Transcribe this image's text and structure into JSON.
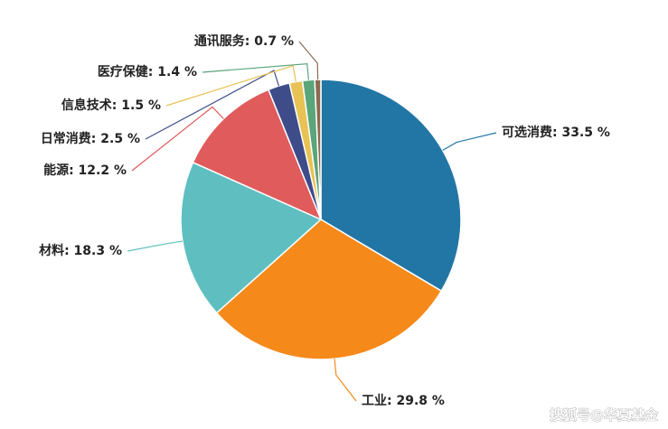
{
  "chart_data": {
    "type": "pie",
    "values": [
      33.5,
      29.8,
      18.3,
      12.2,
      2.5,
      1.5,
      1.4,
      0.7
    ],
    "value_labels": [
      "可选消费: 33.5 %",
      "工业: 29.8 %",
      "材料: 18.3 %",
      "能源: 12.2 %",
      "日常消费: 2.5 %",
      "信息技术: 1.5 %",
      "医疗保健: 1.4 %",
      "通讯服务: 0.7 %"
    ],
    "colors": [
      "#2276a5",
      "#f5891a",
      "#5fbfc0",
      "#e05c5c",
      "#3f4c8a",
      "#e8c254",
      "#5aa57a",
      "#8b6a4f"
    ]
  },
  "watermark": "搜狐号@华夏基金"
}
